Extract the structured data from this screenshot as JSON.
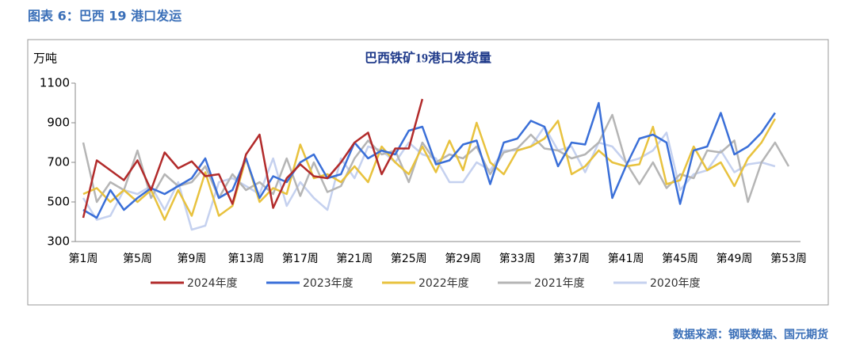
{
  "caption": "图表 6：巴西 19 港口发运",
  "source": "数据来源：钢联数据、国元期货",
  "chart_data": {
    "type": "line",
    "title": "巴西铁矿19港口发货量",
    "ylabel": "万吨",
    "categories": [
      "第1周",
      null,
      null,
      null,
      "第5周",
      null,
      null,
      null,
      "第9周",
      null,
      null,
      null,
      "第13周",
      null,
      null,
      null,
      "第17周",
      null,
      null,
      null,
      "第21周",
      null,
      null,
      null,
      "第25周",
      null,
      null,
      null,
      "第29周",
      null,
      null,
      null,
      "第33周",
      null,
      null,
      null,
      "第37周",
      null,
      null,
      null,
      "第41周",
      null,
      null,
      null,
      "第45周",
      null,
      null,
      null,
      "第49周",
      null,
      null,
      null,
      "第53周"
    ],
    "ylim": [
      300,
      1100
    ],
    "yticks": [
      300,
      500,
      700,
      900,
      1100
    ],
    "grid": false,
    "legend": "bottom",
    "series": [
      {
        "name": "2024年度",
        "color": "#b22b2b",
        "values": [
          420,
          710,
          660,
          610,
          710,
          560,
          750,
          670,
          705,
          630,
          640,
          490,
          740,
          840,
          470,
          620,
          690,
          630,
          620,
          700,
          800,
          850,
          640,
          770,
          770,
          1020,
          null,
          null,
          null,
          null,
          null,
          null,
          null,
          null,
          null,
          null,
          null,
          null,
          null,
          null,
          null,
          null,
          null,
          null,
          null,
          null,
          null,
          null,
          null,
          null,
          null,
          null,
          null
        ]
      },
      {
        "name": "2023年度",
        "color": "#3a6fd8",
        "values": [
          460,
          420,
          560,
          460,
          520,
          570,
          540,
          580,
          620,
          720,
          520,
          560,
          720,
          520,
          630,
          600,
          700,
          740,
          620,
          640,
          800,
          720,
          760,
          740,
          860,
          880,
          690,
          710,
          790,
          810,
          590,
          800,
          820,
          910,
          880,
          680,
          800,
          790,
          1000,
          520,
          680,
          820,
          840,
          800,
          490,
          760,
          780,
          950,
          740,
          780,
          850,
          950,
          null
        ]
      },
      {
        "name": "2022年度",
        "color": "#e8c23e",
        "values": [
          540,
          570,
          500,
          560,
          500,
          560,
          410,
          560,
          430,
          650,
          430,
          480,
          720,
          500,
          570,
          540,
          790,
          620,
          640,
          600,
          680,
          600,
          780,
          700,
          640,
          780,
          650,
          810,
          660,
          900,
          700,
          640,
          760,
          780,
          820,
          910,
          640,
          680,
          760,
          700,
          680,
          690,
          880,
          590,
          610,
          780,
          660,
          700,
          580,
          720,
          800,
          920,
          null
        ]
      },
      {
        "name": "2021年度",
        "color": "#b5b5b5",
        "values": [
          800,
          500,
          600,
          560,
          760,
          520,
          640,
          580,
          600,
          680,
          520,
          640,
          560,
          600,
          540,
          720,
          530,
          700,
          550,
          580,
          720,
          810,
          740,
          760,
          600,
          800,
          700,
          740,
          720,
          780,
          640,
          750,
          770,
          840,
          770,
          760,
          720,
          740,
          800,
          940,
          700,
          590,
          700,
          570,
          640,
          620,
          760,
          750,
          810,
          500,
          700,
          800,
          680
        ]
      },
      {
        "name": "2020年度",
        "color": "#c5d1ef",
        "values": [
          520,
          410,
          430,
          560,
          540,
          580,
          460,
          600,
          360,
          380,
          600,
          620,
          580,
          540,
          720,
          480,
          600,
          520,
          460,
          720,
          620,
          780,
          760,
          700,
          800,
          740,
          720,
          600,
          600,
          700,
          660,
          760,
          760,
          780,
          880,
          760,
          780,
          650,
          800,
          780,
          700,
          720,
          760,
          850,
          560,
          640,
          660,
          760,
          650,
          690,
          700,
          680,
          null
        ]
      }
    ]
  }
}
